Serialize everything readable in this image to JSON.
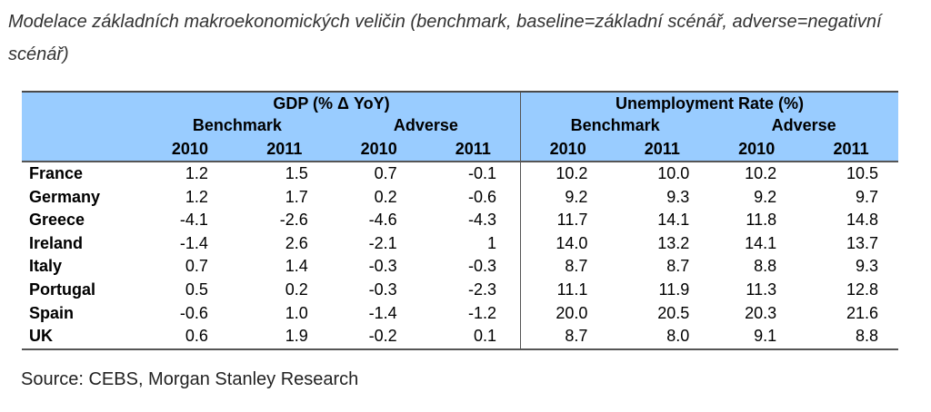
{
  "caption": "Modelace základních makroekonomických veličin (benchmark, baseline=základní scénář, adverse=negativní scénář)",
  "table": {
    "group_gdp": "GDP (% Δ YoY)",
    "group_unemp": "Unemployment Rate (%)",
    "benchmark": "Benchmark",
    "adverse": "Adverse",
    "years": [
      "2010",
      "2011",
      "2010",
      "2011",
      "2010",
      "2011",
      "2010",
      "2011"
    ],
    "rows": [
      {
        "country": "France",
        "values": [
          "1.2",
          "1.5",
          "0.7",
          "-0.1",
          "10.2",
          "10.0",
          "10.2",
          "10.5"
        ]
      },
      {
        "country": "Germany",
        "values": [
          "1.2",
          "1.7",
          "0.2",
          "-0.6",
          "9.2",
          "9.3",
          "9.2",
          "9.7"
        ]
      },
      {
        "country": "Greece",
        "values": [
          "-4.1",
          "-2.6",
          "-4.6",
          "-4.3",
          "11.7",
          "14.1",
          "11.8",
          "14.8"
        ]
      },
      {
        "country": "Ireland",
        "values": [
          "-1.4",
          "2.6",
          "-2.1",
          "1",
          "14.0",
          "13.2",
          "14.1",
          "13.7"
        ]
      },
      {
        "country": "Italy",
        "values": [
          "0.7",
          "1.4",
          "-0.3",
          "-0.3",
          "8.7",
          "8.7",
          "8.8",
          "9.3"
        ]
      },
      {
        "country": "Portugal",
        "values": [
          "0.5",
          "0.2",
          "-0.3",
          "-2.3",
          "11.1",
          "11.9",
          "11.3",
          "12.8"
        ]
      },
      {
        "country": "Spain",
        "values": [
          "-0.6",
          "1.0",
          "-1.4",
          "-1.2",
          "20.0",
          "20.5",
          "20.3",
          "21.6"
        ]
      },
      {
        "country": "UK",
        "values": [
          "0.6",
          "1.9",
          "-0.2",
          "0.1",
          "8.7",
          "8.0",
          "9.1",
          "8.8"
        ]
      }
    ]
  },
  "source": "Source: CEBS, Morgan Stanley Research"
}
